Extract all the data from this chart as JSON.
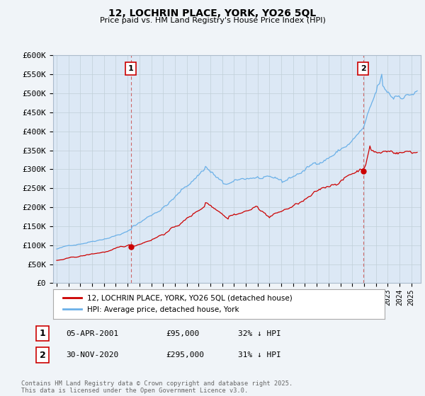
{
  "title": "12, LOCHRIN PLACE, YORK, YO26 5QL",
  "subtitle": "Price paid vs. HM Land Registry's House Price Index (HPI)",
  "ylim": [
    0,
    600000
  ],
  "yticks": [
    0,
    50000,
    100000,
    150000,
    200000,
    250000,
    300000,
    350000,
    400000,
    450000,
    500000,
    550000,
    600000
  ],
  "ytick_labels": [
    "£0",
    "£50K",
    "£100K",
    "£150K",
    "£200K",
    "£250K",
    "£300K",
    "£350K",
    "£400K",
    "£450K",
    "£500K",
    "£550K",
    "£600K"
  ],
  "hpi_color": "#6ab0e8",
  "price_color": "#cc0000",
  "vline_color": "#cc6666",
  "marker1_x": 2001.27,
  "marker2_x": 2020.92,
  "marker1_y": 95000,
  "marker2_y": 295000,
  "annotation1": {
    "label": "1",
    "date": "05-APR-2001",
    "price": "£95,000",
    "pct": "32% ↓ HPI"
  },
  "annotation2": {
    "label": "2",
    "date": "30-NOV-2020",
    "price": "£295,000",
    "pct": "31% ↓ HPI"
  },
  "legend_line1": "12, LOCHRIN PLACE, YORK, YO26 5QL (detached house)",
  "legend_line2": "HPI: Average price, detached house, York",
  "footer": "Contains HM Land Registry data © Crown copyright and database right 2025.\nThis data is licensed under the Open Government Licence v3.0.",
  "bg_color": "#f0f4f8",
  "plot_bg_color": "#dce8f5",
  "xlim_left": 1994.7,
  "xlim_right": 2025.8
}
